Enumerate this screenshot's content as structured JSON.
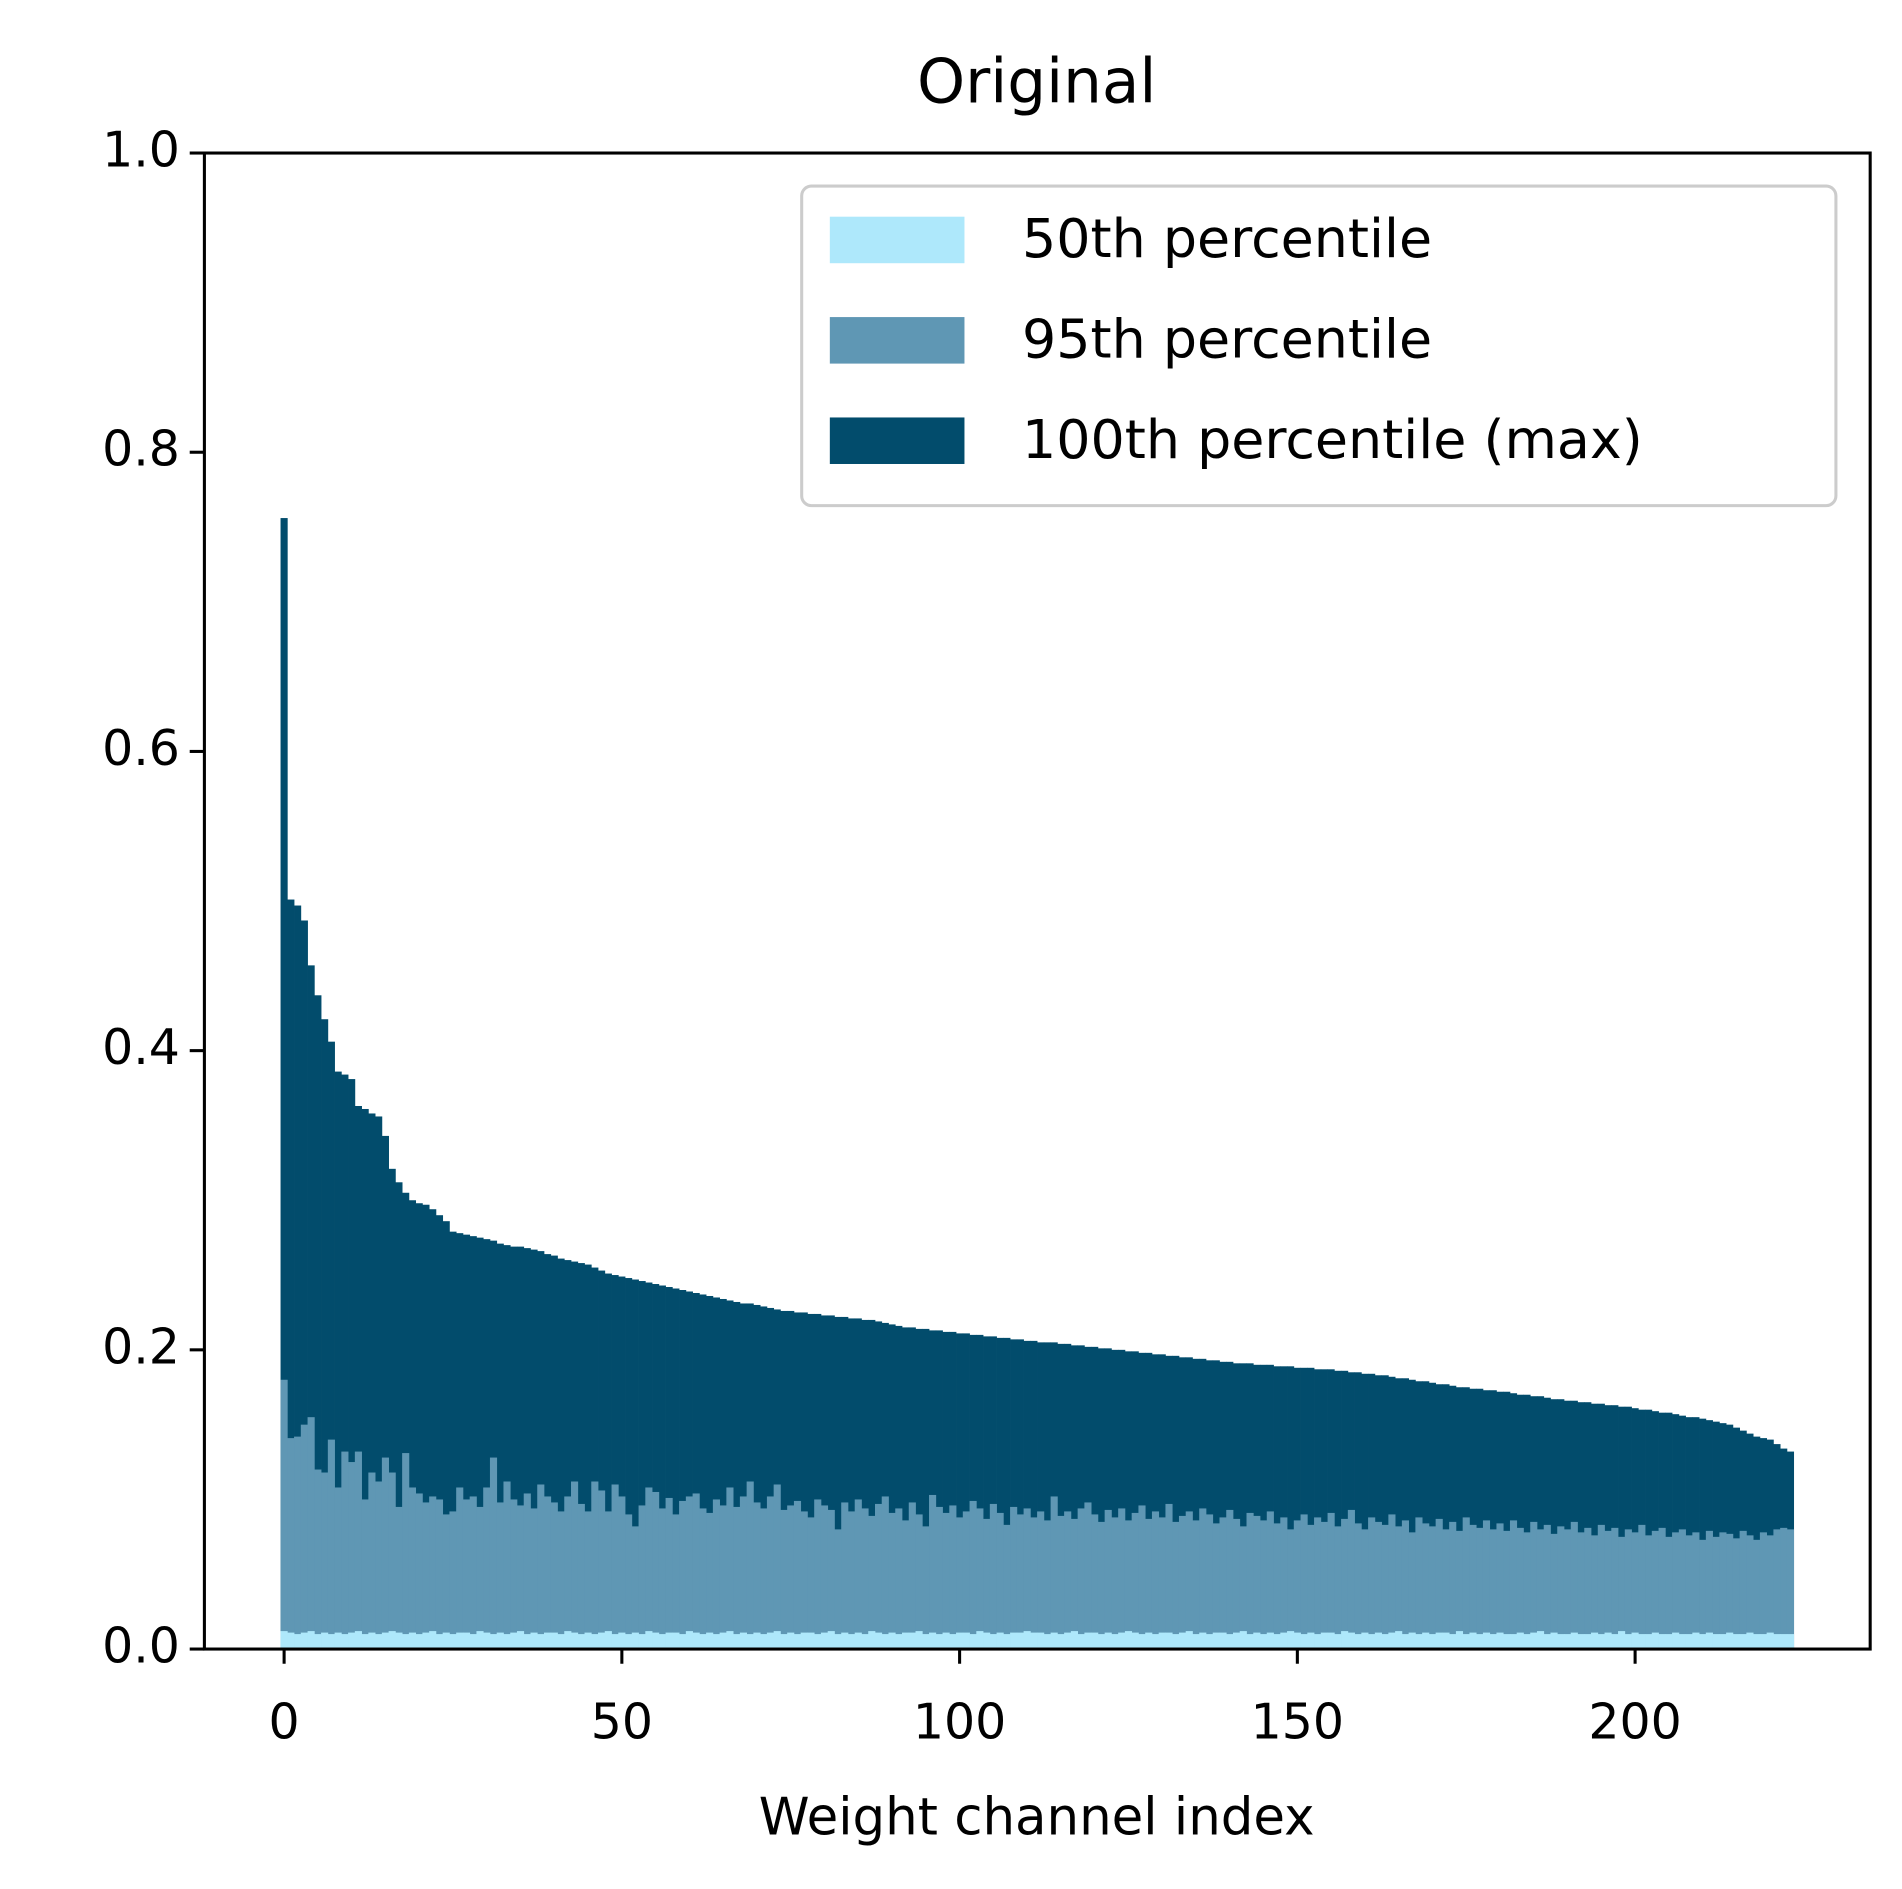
{
  "chart_data": {
    "type": "bar",
    "title": "Original",
    "xlabel": "Weight channel index",
    "xlim": [
      -11.8,
      234.8
    ],
    "ylim": [
      0,
      1
    ],
    "xticks": [
      0,
      50,
      100,
      150,
      200
    ],
    "yticks": [
      {
        "value": 0,
        "label": "0.0"
      },
      0.2,
      0.4,
      0.6,
      0.8,
      {
        "value": 1,
        "label": "1.0"
      }
    ],
    "legend": "upper right",
    "series": [
      {
        "name": "100th percentile (max)",
        "color": "#024c6c",
        "values": [
          0.756,
          0.501,
          0.497,
          0.487,
          0.457,
          0.437,
          0.421,
          0.406,
          0.386,
          0.384,
          0.381,
          0.363,
          0.361,
          0.358,
          0.356,
          0.343,
          0.321,
          0.312,
          0.305,
          0.3,
          0.298,
          0.297,
          0.294,
          0.29,
          0.286,
          0.279,
          0.278,
          0.277,
          0.276,
          0.275,
          0.274,
          0.273,
          0.271,
          0.27,
          0.269,
          0.269,
          0.268,
          0.267,
          0.266,
          0.264,
          0.263,
          0.261,
          0.26,
          0.259,
          0.258,
          0.257,
          0.255,
          0.253,
          0.251,
          0.25,
          0.249,
          0.248,
          0.247,
          0.246,
          0.245,
          0.244,
          0.243,
          0.242,
          0.241,
          0.24,
          0.239,
          0.238,
          0.237,
          0.236,
          0.235,
          0.234,
          0.233,
          0.232,
          0.231,
          0.231,
          0.23,
          0.229,
          0.228,
          0.227,
          0.226,
          0.226,
          0.225,
          0.225,
          0.224,
          0.224,
          0.223,
          0.223,
          0.222,
          0.222,
          0.221,
          0.221,
          0.22,
          0.22,
          0.219,
          0.218,
          0.217,
          0.216,
          0.215,
          0.215,
          0.214,
          0.214,
          0.213,
          0.213,
          0.212,
          0.212,
          0.211,
          0.211,
          0.21,
          0.21,
          0.209,
          0.209,
          0.208,
          0.208,
          0.207,
          0.207,
          0.206,
          0.206,
          0.205,
          0.205,
          0.205,
          0.204,
          0.204,
          0.203,
          0.203,
          0.202,
          0.202,
          0.201,
          0.201,
          0.2,
          0.2,
          0.199,
          0.199,
          0.198,
          0.198,
          0.197,
          0.197,
          0.196,
          0.196,
          0.195,
          0.195,
          0.194,
          0.194,
          0.193,
          0.193,
          0.192,
          0.192,
          0.191,
          0.191,
          0.191,
          0.19,
          0.19,
          0.19,
          0.189,
          0.189,
          0.189,
          0.188,
          0.188,
          0.188,
          0.187,
          0.187,
          0.187,
          0.186,
          0.186,
          0.185,
          0.185,
          0.184,
          0.184,
          0.183,
          0.183,
          0.182,
          0.181,
          0.181,
          0.18,
          0.179,
          0.179,
          0.178,
          0.177,
          0.177,
          0.176,
          0.175,
          0.175,
          0.174,
          0.174,
          0.173,
          0.173,
          0.172,
          0.172,
          0.171,
          0.17,
          0.17,
          0.169,
          0.169,
          0.168,
          0.167,
          0.167,
          0.166,
          0.166,
          0.165,
          0.165,
          0.164,
          0.164,
          0.163,
          0.163,
          0.162,
          0.162,
          0.161,
          0.16,
          0.16,
          0.159,
          0.158,
          0.158,
          0.157,
          0.156,
          0.155,
          0.155,
          0.154,
          0.153,
          0.152,
          0.151,
          0.15,
          0.148,
          0.146,
          0.144,
          0.142,
          0.141,
          0.14,
          0.137,
          0.134,
          0.132
        ]
      },
      {
        "name": "95th percentile",
        "color": "#5f97b4",
        "values": [
          0.18,
          0.141,
          0.142,
          0.15,
          0.155,
          0.12,
          0.118,
          0.14,
          0.108,
          0.132,
          0.125,
          0.132,
          0.1,
          0.118,
          0.112,
          0.128,
          0.118,
          0.095,
          0.131,
          0.108,
          0.104,
          0.098,
          0.102,
          0.1,
          0.09,
          0.092,
          0.108,
          0.1,
          0.102,
          0.095,
          0.108,
          0.128,
          0.098,
          0.112,
          0.1,
          0.096,
          0.104,
          0.094,
          0.11,
          0.102,
          0.098,
          0.092,
          0.102,
          0.112,
          0.097,
          0.092,
          0.112,
          0.106,
          0.092,
          0.11,
          0.102,
          0.09,
          0.082,
          0.096,
          0.108,
          0.105,
          0.094,
          0.101,
          0.09,
          0.099,
          0.102,
          0.104,
          0.094,
          0.091,
          0.1,
          0.096,
          0.108,
          0.095,
          0.102,
          0.112,
          0.098,
          0.094,
          0.102,
          0.11,
          0.093,
          0.096,
          0.099,
          0.092,
          0.088,
          0.1,
          0.096,
          0.093,
          0.08,
          0.098,
          0.092,
          0.1,
          0.094,
          0.089,
          0.097,
          0.102,
          0.091,
          0.094,
          0.086,
          0.098,
          0.09,
          0.082,
          0.103,
          0.095,
          0.091,
          0.096,
          0.088,
          0.092,
          0.099,
          0.094,
          0.087,
          0.097,
          0.091,
          0.083,
          0.095,
          0.09,
          0.094,
          0.088,
          0.092,
          0.086,
          0.102,
          0.089,
          0.092,
          0.087,
          0.094,
          0.098,
          0.09,
          0.085,
          0.093,
          0.088,
          0.094,
          0.086,
          0.091,
          0.096,
          0.087,
          0.092,
          0.088,
          0.097,
          0.085,
          0.089,
          0.092,
          0.086,
          0.094,
          0.09,
          0.084,
          0.088,
          0.093,
          0.087,
          0.082,
          0.091,
          0.089,
          0.086,
          0.092,
          0.084,
          0.088,
          0.08,
          0.086,
          0.09,
          0.083,
          0.088,
          0.085,
          0.091,
          0.082,
          0.087,
          0.093,
          0.084,
          0.08,
          0.088,
          0.085,
          0.083,
          0.09,
          0.082,
          0.086,
          0.078,
          0.088,
          0.084,
          0.082,
          0.087,
          0.08,
          0.085,
          0.079,
          0.088,
          0.083,
          0.081,
          0.086,
          0.08,
          0.084,
          0.079,
          0.086,
          0.081,
          0.078,
          0.085,
          0.08,
          0.083,
          0.077,
          0.082,
          0.08,
          0.085,
          0.078,
          0.081,
          0.076,
          0.083,
          0.079,
          0.081,
          0.075,
          0.08,
          0.078,
          0.083,
          0.076,
          0.079,
          0.081,
          0.075,
          0.078,
          0.08,
          0.076,
          0.078,
          0.073,
          0.079,
          0.075,
          0.078,
          0.077,
          0.074,
          0.079,
          0.076,
          0.073,
          0.078,
          0.076,
          0.08,
          0.081,
          0.08
        ]
      },
      {
        "name": "50th percentile",
        "color": "#aee8fb",
        "values": [
          0.012,
          0.011,
          0.01,
          0.011,
          0.012,
          0.01,
          0.011,
          0.01,
          0.011,
          0.01,
          0.011,
          0.012,
          0.01,
          0.011,
          0.01,
          0.011,
          0.012,
          0.011,
          0.01,
          0.011,
          0.01,
          0.011,
          0.012,
          0.01,
          0.011,
          0.01,
          0.011,
          0.011,
          0.01,
          0.012,
          0.011,
          0.01,
          0.011,
          0.01,
          0.011,
          0.012,
          0.01,
          0.011,
          0.01,
          0.011,
          0.011,
          0.01,
          0.012,
          0.011,
          0.01,
          0.011,
          0.01,
          0.011,
          0.012,
          0.01,
          0.011,
          0.01,
          0.011,
          0.01,
          0.012,
          0.011,
          0.01,
          0.011,
          0.011,
          0.01,
          0.012,
          0.011,
          0.01,
          0.011,
          0.01,
          0.011,
          0.012,
          0.01,
          0.011,
          0.01,
          0.011,
          0.01,
          0.011,
          0.012,
          0.01,
          0.011,
          0.01,
          0.011,
          0.011,
          0.01,
          0.011,
          0.012,
          0.01,
          0.011,
          0.01,
          0.011,
          0.01,
          0.012,
          0.011,
          0.01,
          0.011,
          0.01,
          0.011,
          0.011,
          0.012,
          0.01,
          0.011,
          0.01,
          0.011,
          0.01,
          0.011,
          0.011,
          0.01,
          0.012,
          0.011,
          0.01,
          0.011,
          0.01,
          0.011,
          0.011,
          0.012,
          0.011,
          0.011,
          0.01,
          0.011,
          0.01,
          0.011,
          0.012,
          0.01,
          0.011,
          0.011,
          0.01,
          0.011,
          0.01,
          0.011,
          0.012,
          0.011,
          0.01,
          0.011,
          0.01,
          0.011,
          0.011,
          0.01,
          0.011,
          0.012,
          0.01,
          0.011,
          0.01,
          0.011,
          0.011,
          0.01,
          0.011,
          0.012,
          0.01,
          0.011,
          0.01,
          0.011,
          0.01,
          0.011,
          0.012,
          0.011,
          0.01,
          0.011,
          0.01,
          0.011,
          0.011,
          0.01,
          0.012,
          0.011,
          0.01,
          0.011,
          0.01,
          0.011,
          0.01,
          0.011,
          0.012,
          0.01,
          0.011,
          0.01,
          0.011,
          0.01,
          0.011,
          0.011,
          0.01,
          0.012,
          0.01,
          0.011,
          0.01,
          0.011,
          0.01,
          0.011,
          0.01,
          0.01,
          0.011,
          0.01,
          0.011,
          0.012,
          0.01,
          0.011,
          0.01,
          0.01,
          0.011,
          0.01,
          0.01,
          0.011,
          0.01,
          0.011,
          0.01,
          0.012,
          0.01,
          0.011,
          0.01,
          0.01,
          0.011,
          0.01,
          0.01,
          0.011,
          0.01,
          0.01,
          0.011,
          0.01,
          0.011,
          0.01,
          0.01,
          0.011,
          0.01,
          0.01,
          0.011,
          0.01,
          0.01,
          0.011,
          0.01,
          0.01,
          0.01
        ]
      }
    ]
  }
}
